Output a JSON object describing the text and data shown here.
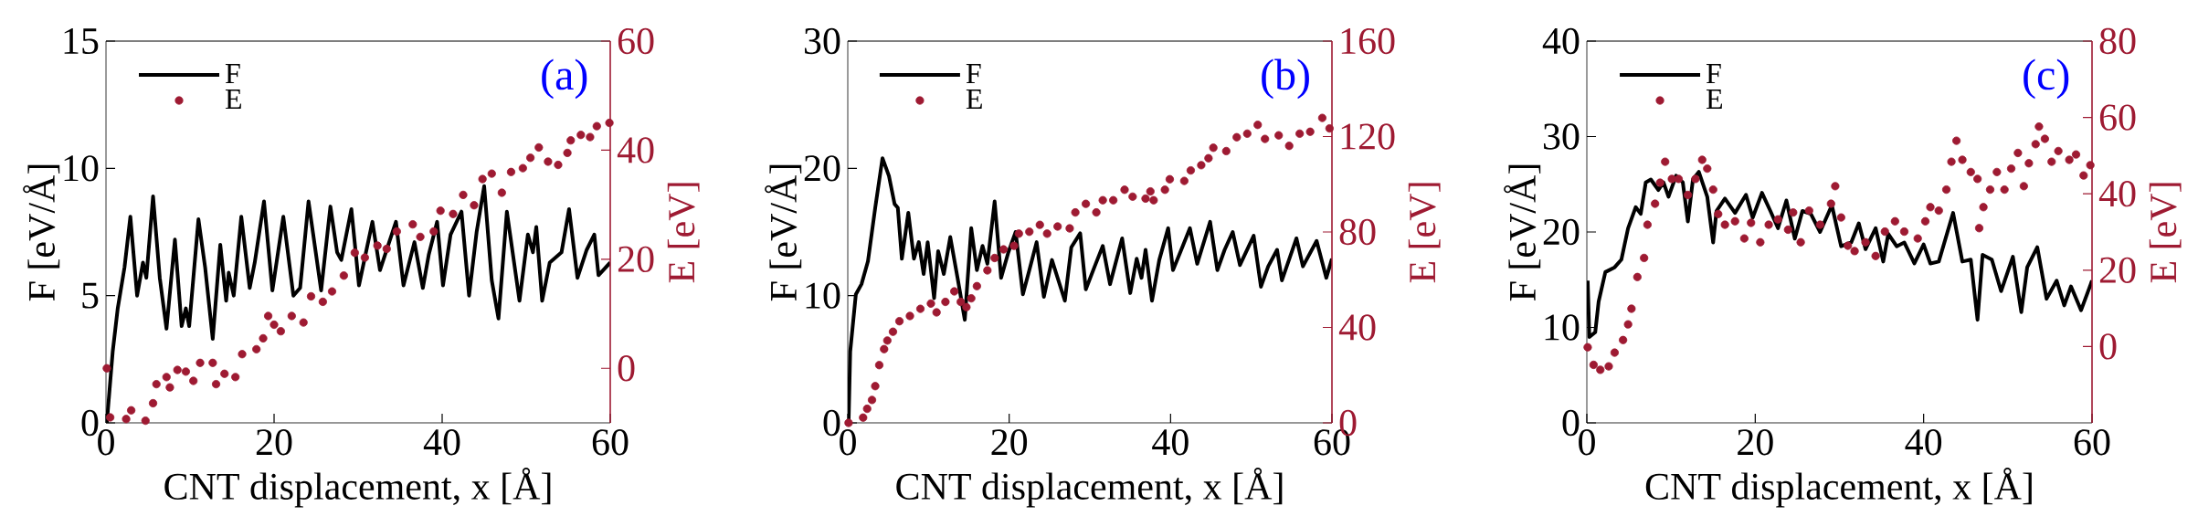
{
  "chart_data": [
    {
      "type": "line",
      "xlabel": "CNT displacement, x [Å]",
      "ylabel": "F [eV/Å]",
      "y2label": "E [eV]",
      "xlim": [
        0,
        60
      ],
      "xticks": [
        0,
        20,
        40,
        60
      ],
      "ylim": [
        0,
        15
      ],
      "yticks": [
        0,
        5,
        10,
        15
      ],
      "y2lim": [
        -10,
        60
      ],
      "y2ticks": [
        0,
        20,
        40,
        60
      ],
      "legend": "top left",
      "annotations": [
        "(a)"
      ],
      "series": [
        {
          "name": "F",
          "color": "#000000",
          "x": [
            0.1,
            0.8,
            1.4,
            2.2,
            2.9,
            3.7,
            4.4,
            4.8,
            5.6,
            6.4,
            7.2,
            8.2,
            9.0,
            9.5,
            9.9,
            11.0,
            11.8,
            12.7,
            13.6,
            14.3,
            14.6,
            15.2,
            16.1,
            17.1,
            17.7,
            18.8,
            19.8,
            21.1,
            22.3,
            23.1,
            24.1,
            25.6,
            26.7,
            27.5,
            28.0,
            29.2,
            30.1,
            31.7,
            32.6,
            33.6,
            34.5,
            35.4,
            36.7,
            37.7,
            38.4,
            39.4,
            40.1,
            41.0,
            42.3,
            43.2,
            44.1,
            45.0,
            45.9,
            46.7,
            47.7,
            49.2,
            50.2,
            50.8,
            51.2,
            51.9,
            52.8,
            54.2,
            55.1,
            56.1,
            57.2,
            58.1,
            58.6,
            60
          ],
          "values": [
            0,
            2.8,
            4.5,
            6.1,
            8.1,
            5.0,
            6.3,
            5.7,
            8.9,
            5.7,
            3.7,
            7.2,
            3.8,
            4.5,
            3.8,
            8.0,
            6.1,
            3.3,
            7.0,
            4.8,
            5.9,
            5.0,
            8.1,
            5.3,
            6.3,
            8.7,
            5.2,
            8.1,
            5.0,
            5.3,
            8.7,
            5.2,
            8.5,
            6.7,
            6.4,
            8.4,
            5.4,
            7.9,
            6.0,
            7.0,
            7.9,
            5.4,
            7.1,
            5.3,
            6.6,
            7.9,
            5.4,
            7.4,
            8.3,
            5.0,
            7.5,
            9.3,
            5.6,
            4.1,
            8.3,
            4.8,
            7.4,
            6.7,
            7.7,
            4.8,
            6.3,
            6.7,
            8.4,
            5.7,
            6.8,
            7.4,
            5.8,
            6.3
          ]
        },
        {
          "name": "E",
          "type": "scatter",
          "axis": "y2",
          "marker": "circle",
          "color": "#9e1a32",
          "x": [
            0.1,
            0.5,
            2.4,
            3.0,
            4.7,
            5.6,
            6.0,
            7.2,
            7.6,
            8.5,
            9.5,
            10.4,
            11.2,
            12.7,
            13.1,
            14.1,
            15.4,
            16.2,
            17.9,
            18.7,
            19.3,
            20.0,
            20.8,
            22.1,
            23.5,
            24.4,
            25.8,
            26.9,
            28.3,
            29.6,
            30.8,
            32.3,
            33.4,
            34.6,
            36.5,
            37.4,
            39.0,
            39.8,
            41.3,
            42.5,
            43.8,
            44.8,
            45.9,
            47.1,
            48.2,
            49.6,
            50.5,
            51.5,
            52.6,
            53.8,
            54.9,
            55.3,
            56.5,
            57.6,
            58.4,
            59.9
          ],
          "values": [
            0,
            -9,
            -9.3,
            -7.7,
            -9.6,
            -6.4,
            -2.9,
            -1.6,
            -3.5,
            -0.3,
            -0.6,
            -2.3,
            1.0,
            1.0,
            -2.9,
            -1.0,
            -1.6,
            2.6,
            3.5,
            5.5,
            9.6,
            8.0,
            6.8,
            9.6,
            8.4,
            13.2,
            12.2,
            14.1,
            17.0,
            21.2,
            20.3,
            22.5,
            21.9,
            25.1,
            26.4,
            24.1,
            25.1,
            28.9,
            28.3,
            31.8,
            29.9,
            34.7,
            35.7,
            32.2,
            36.0,
            36.7,
            38.6,
            40.5,
            37.9,
            37.3,
            39.5,
            41.8,
            42.8,
            42.4,
            44.4,
            45.0
          ]
        }
      ]
    },
    {
      "type": "line",
      "xlabel": "CNT displacement, x [Å]",
      "ylabel": "F [eV/Å]",
      "y2label": "E [eV]",
      "xlim": [
        0,
        60
      ],
      "xticks": [
        0,
        20,
        40,
        60
      ],
      "ylim": [
        0,
        30
      ],
      "yticks": [
        0,
        10,
        20,
        30
      ],
      "y2lim": [
        0,
        160
      ],
      "y2ticks": [
        0,
        40,
        80,
        120,
        160
      ],
      "legend": "top left",
      "annotations": [
        "(b)"
      ],
      "series": [
        {
          "name": "F",
          "color": "#000000",
          "x": [
            0.1,
            0.3,
            1.0,
            1.7,
            2.5,
            3.4,
            4.3,
            5.1,
            5.8,
            6.2,
            6.7,
            7.5,
            8.2,
            8.8,
            9.4,
            9.9,
            10.7,
            11.2,
            11.9,
            12.7,
            13.6,
            14.5,
            15.3,
            16.0,
            16.7,
            17.3,
            18.2,
            19.0,
            19.9,
            20.8,
            21.7,
            22.5,
            23.4,
            24.3,
            25.3,
            26.9,
            27.7,
            28.8,
            29.5,
            30.6,
            31.6,
            32.5,
            34.0,
            35.0,
            35.8,
            36.4,
            36.9,
            37.7,
            38.6,
            39.7,
            40.3,
            41.2,
            42.4,
            43.3,
            44.9,
            45.8,
            46.7,
            47.7,
            48.6,
            50.3,
            51.2,
            52.1,
            53.2,
            53.8,
            55.6,
            56.4,
            58.1,
            59.3,
            60
          ],
          "values": [
            0,
            5.6,
            10.1,
            10.9,
            12.7,
            16.9,
            20.8,
            19.4,
            17.2,
            16.9,
            12.9,
            16.5,
            12.9,
            14.2,
            11.7,
            14.2,
            9.8,
            13.5,
            11.7,
            14.6,
            11.4,
            8.1,
            15.3,
            12.0,
            13.9,
            12.5,
            17.4,
            11.4,
            13.4,
            15.0,
            10.1,
            12.0,
            14.2,
            9.9,
            12.8,
            9.6,
            13.8,
            14.9,
            10.5,
            12.3,
            13.9,
            10.9,
            14.5,
            10.2,
            12.9,
            11.4,
            13.6,
            9.6,
            12.8,
            15.3,
            12.0,
            13.4,
            15.3,
            12.5,
            15.8,
            12.0,
            13.6,
            15.0,
            12.4,
            14.7,
            10.7,
            12.3,
            13.6,
            11.2,
            14.5,
            12.3,
            14.3,
            11.4,
            12.9
          ]
        },
        {
          "name": "E",
          "type": "scatter",
          "axis": "y2",
          "marker": "circle",
          "color": "#9e1a32",
          "x": [
            0.1,
            1.9,
            2.4,
            3.0,
            3.4,
            3.9,
            4.5,
            4.9,
            5.6,
            6.4,
            7.7,
            9.0,
            10.3,
            11.0,
            12.1,
            13.2,
            14.0,
            14.7,
            15.3,
            16.0,
            17.3,
            18.2,
            19.3,
            20.6,
            21.2,
            22.5,
            23.8,
            24.7,
            26.0,
            27.5,
            28.2,
            29.5,
            30.8,
            31.6,
            32.9,
            34.3,
            35.3,
            36.9,
            37.5,
            37.9,
            39.3,
            39.9,
            41.7,
            42.5,
            43.8,
            44.7,
            45.3,
            46.9,
            48.2,
            49.5,
            50.8,
            51.7,
            53.4,
            54.7,
            56.0,
            57.3,
            58.8,
            59.7
          ],
          "values": [
            0,
            2.2,
            5.9,
            9.6,
            15.4,
            24.2,
            30.9,
            34.5,
            38.2,
            42.6,
            44.8,
            47.8,
            50.0,
            46.3,
            50.7,
            55.1,
            50.7,
            48.5,
            52.2,
            57.3,
            63.9,
            69.1,
            72.7,
            74.2,
            79.3,
            80.1,
            83.0,
            79.3,
            82.3,
            81.5,
            88.2,
            91.8,
            88.2,
            93.3,
            93.3,
            97.7,
            94.8,
            94.0,
            97.0,
            93.3,
            97.7,
            102.1,
            101.4,
            105.8,
            108.0,
            110.9,
            115.3,
            113.9,
            119.7,
            121.2,
            124.9,
            119.0,
            120.5,
            116.1,
            121.2,
            122.0,
            127.8,
            123.4
          ]
        }
      ]
    },
    {
      "type": "line",
      "xlabel": "CNT displacement, x [Å]",
      "ylabel": "F [eV/Å]",
      "y2label": "E [eV]",
      "xlim": [
        0,
        60
      ],
      "xticks": [
        0,
        20,
        40,
        60
      ],
      "ylim": [
        0,
        40
      ],
      "yticks": [
        0,
        10,
        20,
        30,
        40
      ],
      "y2lim": [
        -20,
        80
      ],
      "y2ticks": [
        0,
        20,
        40,
        60,
        80
      ],
      "legend": "top left",
      "annotations": [
        "(c)"
      ],
      "series": [
        {
          "name": "F",
          "color": "#000000",
          "x": [
            0.1,
            0.3,
            1.0,
            1.4,
            2.2,
            3.3,
            4.1,
            4.9,
            5.8,
            6.4,
            7.0,
            7.6,
            8.5,
            9.1,
            9.7,
            10.6,
            11.4,
            12.0,
            12.6,
            13.3,
            14.3,
            15.0,
            15.4,
            16.4,
            17.6,
            18.9,
            19.7,
            20.8,
            21.8,
            22.7,
            23.7,
            24.7,
            25.6,
            26.6,
            27.7,
            29.1,
            30.2,
            31.4,
            32.3,
            33.1,
            34.3,
            35.2,
            35.8,
            36.8,
            37.7,
            38.9,
            40.0,
            40.8,
            41.8,
            43.5,
            44.6,
            45.6,
            46.4,
            47.0,
            48.1,
            49.2,
            50.6,
            51.6,
            52.3,
            53.5,
            54.6,
            55.8,
            56.7,
            57.5,
            58.7,
            60
          ],
          "values": [
            14.9,
            9.0,
            9.5,
            12.7,
            15.8,
            16.3,
            17.1,
            20.4,
            22.6,
            21.9,
            25.2,
            25.5,
            24.4,
            25.2,
            23.7,
            25.9,
            25.2,
            21.1,
            25.5,
            26.3,
            23.7,
            18.9,
            22.2,
            23.5,
            22.0,
            23.9,
            21.5,
            24.1,
            22.2,
            20.4,
            23.3,
            19.3,
            22.2,
            21.9,
            20.0,
            22.8,
            18.5,
            18.9,
            20.9,
            18.2,
            20.4,
            16.9,
            19.8,
            18.5,
            18.9,
            16.7,
            18.7,
            16.7,
            16.9,
            22.0,
            16.9,
            17.1,
            10.8,
            17.6,
            17.1,
            13.8,
            17.4,
            11.6,
            16.3,
            18.4,
            13.0,
            14.9,
            12.3,
            14.3,
            11.8,
            14.9
          ]
        },
        {
          "name": "E",
          "type": "scatter",
          "axis": "y2",
          "marker": "circle",
          "color": "#9e1a32",
          "x": [
            0.1,
            0.8,
            1.6,
            2.6,
            3.3,
            4.3,
            4.9,
            5.3,
            6.0,
            6.8,
            7.2,
            8.1,
            8.7,
            9.3,
            10.1,
            10.9,
            12.0,
            12.9,
            13.7,
            14.3,
            15.0,
            15.6,
            16.4,
            17.6,
            18.7,
            19.5,
            20.6,
            21.6,
            22.7,
            23.9,
            24.5,
            25.4,
            26.4,
            27.7,
            29.0,
            29.5,
            30.2,
            31.0,
            31.8,
            33.1,
            34.3,
            35.4,
            36.6,
            37.7,
            39.3,
            40.2,
            40.8,
            41.8,
            42.7,
            43.3,
            43.9,
            44.6,
            45.6,
            46.4,
            46.6,
            47.1,
            47.9,
            48.7,
            49.6,
            50.4,
            51.2,
            51.9,
            52.5,
            53.3,
            53.7,
            54.4,
            55.2,
            56.0,
            57.3,
            58.1,
            59.0,
            59.8
          ],
          "values": [
            -0.2,
            -4.8,
            -6.1,
            -5.2,
            -1.6,
            1.7,
            5.8,
            9.9,
            18.2,
            23.2,
            31.9,
            37.4,
            42.9,
            48.4,
            43.9,
            43.9,
            39.7,
            43.9,
            48.9,
            46.6,
            41.1,
            34.7,
            31.9,
            32.8,
            28.3,
            32.4,
            27.3,
            31.9,
            33.3,
            30.6,
            35.1,
            27.3,
            35.6,
            31.9,
            37.4,
            42.0,
            33.8,
            26.4,
            25.0,
            27.3,
            23.7,
            30.1,
            32.8,
            30.1,
            28.3,
            32.8,
            36.5,
            35.6,
            41.1,
            48.4,
            53.9,
            48.9,
            45.7,
            43.9,
            31.0,
            36.5,
            41.1,
            45.7,
            41.1,
            46.6,
            50.7,
            42.0,
            48.0,
            53.0,
            57.6,
            54.4,
            48.4,
            51.2,
            48.9,
            50.3,
            44.8,
            47.5
          ]
        }
      ]
    }
  ]
}
